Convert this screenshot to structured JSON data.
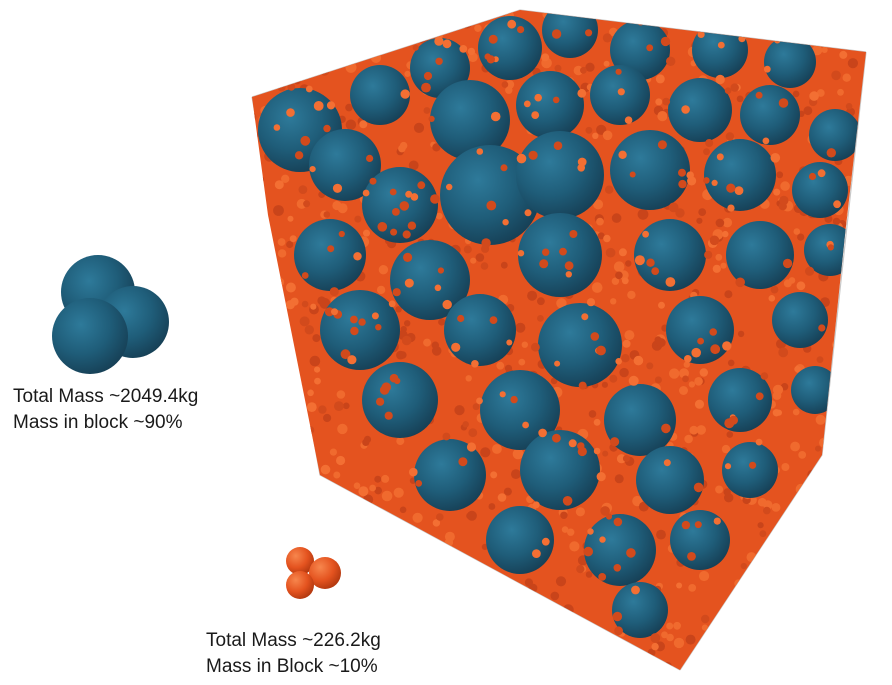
{
  "large_particle": {
    "total_mass": "Total Mass ~2049.4kg",
    "mass_in_block": "Mass in block ~90%",
    "color": "#1f5d79"
  },
  "small_particle": {
    "total_mass": "Total Mass ~226.2kg",
    "mass_in_block": "Mass in Block ~10%",
    "color": "#e4531f"
  },
  "block": {
    "edge_color": "#c8c8c8"
  }
}
